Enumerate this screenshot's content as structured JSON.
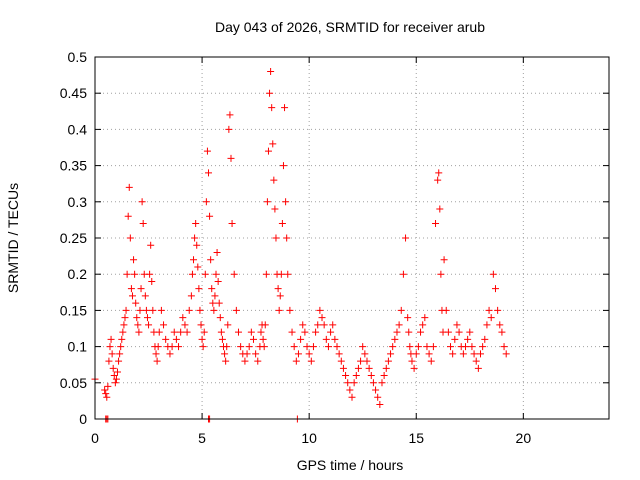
{
  "chart_data": {
    "type": "scatter",
    "title": "Day 043 of 2026, SRMTID for receiver arub",
    "xlabel": "GPS time / hours",
    "ylabel": "SRMTID / TECUs",
    "xlim": [
      0,
      24
    ],
    "ylim": [
      0,
      0.5
    ],
    "xticks": [
      0,
      5,
      10,
      15,
      20
    ],
    "xtick_labels": [
      "0",
      "5",
      "10",
      "15",
      "20"
    ],
    "yticks": [
      0,
      0.05,
      0.1,
      0.15,
      0.2,
      0.25,
      0.3,
      0.35,
      0.4,
      0.45,
      0.5
    ],
    "ytick_labels": [
      "0",
      "0.05",
      "0.1",
      "0.15",
      "0.2",
      "0.25",
      "0.3",
      "0.35",
      "0.4",
      "0.45",
      "0.5"
    ],
    "grid": true,
    "marker": "+",
    "color": "#ff0000",
    "series": [
      {
        "name": "SRMTID",
        "x": [
          0.0,
          0.45,
          0.5,
          0.55,
          0.6,
          0.65,
          0.7,
          0.75,
          0.8,
          0.85,
          0.9,
          0.95,
          1.0,
          1.05,
          1.1,
          1.15,
          1.2,
          1.25,
          1.3,
          1.35,
          1.4,
          1.45,
          1.5,
          1.55,
          1.6,
          1.65,
          1.7,
          1.75,
          1.8,
          1.85,
          1.9,
          1.95,
          2.0,
          2.05,
          2.1,
          2.15,
          2.2,
          2.25,
          2.3,
          2.35,
          2.4,
          2.45,
          2.5,
          2.55,
          2.6,
          2.65,
          2.7,
          2.75,
          2.8,
          2.85,
          2.9,
          2.95,
          3.0,
          3.1,
          3.2,
          3.3,
          3.4,
          3.5,
          3.6,
          3.7,
          3.8,
          3.9,
          4.0,
          4.1,
          4.2,
          4.3,
          4.4,
          4.5,
          4.55,
          4.6,
          4.65,
          4.7,
          4.75,
          4.8,
          4.85,
          4.9,
          4.95,
          5.0,
          5.05,
          5.1,
          5.15,
          5.2,
          5.25,
          5.3,
          5.35,
          5.4,
          5.45,
          5.5,
          5.55,
          5.6,
          5.65,
          5.7,
          5.75,
          5.8,
          5.85,
          5.9,
          5.95,
          6.0,
          6.05,
          6.1,
          6.15,
          6.2,
          6.25,
          6.3,
          6.35,
          6.4,
          6.5,
          6.6,
          6.7,
          6.8,
          6.9,
          7.0,
          7.1,
          7.2,
          7.3,
          7.4,
          7.5,
          7.6,
          7.7,
          7.75,
          7.8,
          7.85,
          7.9,
          7.95,
          8.0,
          8.05,
          8.1,
          8.15,
          8.2,
          8.25,
          8.3,
          8.35,
          8.4,
          8.45,
          8.5,
          8.55,
          8.6,
          8.65,
          8.7,
          8.75,
          8.8,
          8.85,
          8.9,
          8.95,
          9.0,
          9.1,
          9.2,
          9.3,
          9.4,
          9.5,
          9.6,
          9.7,
          9.8,
          9.9,
          10.0,
          10.1,
          10.2,
          10.3,
          10.4,
          10.5,
          10.6,
          10.7,
          10.8,
          10.9,
          11.0,
          11.1,
          11.2,
          11.3,
          11.4,
          11.5,
          11.6,
          11.7,
          11.8,
          11.9,
          12.0,
          12.1,
          12.2,
          12.3,
          12.4,
          12.5,
          12.6,
          12.7,
          12.8,
          12.9,
          13.0,
          13.1,
          13.2,
          13.3,
          13.4,
          13.5,
          13.6,
          13.7,
          13.8,
          13.9,
          14.0,
          14.1,
          14.2,
          14.3,
          14.4,
          14.5,
          14.6,
          14.65,
          14.7,
          14.75,
          14.8,
          14.9,
          15.0,
          15.1,
          15.2,
          15.3,
          15.4,
          15.5,
          15.6,
          15.7,
          15.8,
          15.9,
          16.0,
          16.05,
          16.1,
          16.15,
          16.2,
          16.25,
          16.3,
          16.4,
          16.5,
          16.6,
          16.7,
          16.8,
          16.9,
          17.0,
          17.1,
          17.2,
          17.3,
          17.4,
          17.5,
          17.6,
          17.7,
          17.8,
          17.9,
          18.0,
          18.1,
          18.2,
          18.3,
          18.4,
          18.5,
          18.6,
          18.7,
          18.8,
          18.9,
          19.0,
          19.1,
          19.2,
          0.5,
          0.55,
          0.6,
          5.3,
          5.35,
          9.45
        ],
        "y": [
          0.055,
          0.04,
          0.035,
          0.03,
          0.045,
          0.08,
          0.1,
          0.11,
          0.09,
          0.07,
          0.06,
          0.05,
          0.055,
          0.065,
          0.08,
          0.09,
          0.1,
          0.11,
          0.12,
          0.13,
          0.14,
          0.15,
          0.2,
          0.28,
          0.32,
          0.25,
          0.18,
          0.17,
          0.22,
          0.2,
          0.16,
          0.14,
          0.13,
          0.12,
          0.15,
          0.18,
          0.3,
          0.27,
          0.2,
          0.17,
          0.15,
          0.14,
          0.13,
          0.2,
          0.24,
          0.19,
          0.15,
          0.12,
          0.1,
          0.09,
          0.08,
          0.1,
          0.12,
          0.15,
          0.13,
          0.11,
          0.1,
          0.09,
          0.1,
          0.12,
          0.11,
          0.1,
          0.12,
          0.14,
          0.13,
          0.12,
          0.15,
          0.17,
          0.2,
          0.22,
          0.25,
          0.27,
          0.24,
          0.21,
          0.18,
          0.15,
          0.13,
          0.11,
          0.1,
          0.12,
          0.2,
          0.3,
          0.37,
          0.34,
          0.28,
          0.22,
          0.18,
          0.16,
          0.15,
          0.17,
          0.2,
          0.23,
          0.19,
          0.16,
          0.14,
          0.12,
          0.11,
          0.1,
          0.09,
          0.08,
          0.1,
          0.13,
          0.4,
          0.42,
          0.36,
          0.27,
          0.2,
          0.15,
          0.12,
          0.1,
          0.09,
          0.08,
          0.09,
          0.1,
          0.12,
          0.11,
          0.09,
          0.08,
          0.1,
          0.12,
          0.13,
          0.11,
          0.1,
          0.13,
          0.2,
          0.3,
          0.37,
          0.45,
          0.48,
          0.43,
          0.38,
          0.33,
          0.29,
          0.25,
          0.2,
          0.18,
          0.15,
          0.17,
          0.2,
          0.27,
          0.35,
          0.43,
          0.3,
          0.25,
          0.2,
          0.15,
          0.12,
          0.1,
          0.08,
          0.09,
          0.11,
          0.13,
          0.12,
          0.1,
          0.09,
          0.08,
          0.1,
          0.12,
          0.13,
          0.15,
          0.14,
          0.13,
          0.11,
          0.1,
          0.12,
          0.13,
          0.11,
          0.1,
          0.09,
          0.08,
          0.07,
          0.06,
          0.05,
          0.04,
          0.03,
          0.05,
          0.06,
          0.07,
          0.08,
          0.1,
          0.09,
          0.08,
          0.07,
          0.06,
          0.05,
          0.04,
          0.03,
          0.02,
          0.05,
          0.06,
          0.07,
          0.08,
          0.09,
          0.1,
          0.11,
          0.12,
          0.13,
          0.15,
          0.2,
          0.25,
          0.14,
          0.12,
          0.1,
          0.09,
          0.08,
          0.07,
          0.09,
          0.1,
          0.12,
          0.13,
          0.14,
          0.1,
          0.09,
          0.08,
          0.1,
          0.27,
          0.33,
          0.34,
          0.29,
          0.2,
          0.15,
          0.12,
          0.22,
          0.15,
          0.12,
          0.1,
          0.09,
          0.11,
          0.13,
          0.12,
          0.1,
          0.09,
          0.1,
          0.11,
          0.12,
          0.1,
          0.09,
          0.08,
          0.07,
          0.09,
          0.1,
          0.11,
          0.13,
          0.15,
          0.14,
          0.2,
          0.18,
          0.15,
          0.13,
          0.12,
          0.1,
          0.09,
          0.0,
          0.0,
          0.0,
          0.0,
          0.0,
          0.0
        ]
      }
    ]
  }
}
